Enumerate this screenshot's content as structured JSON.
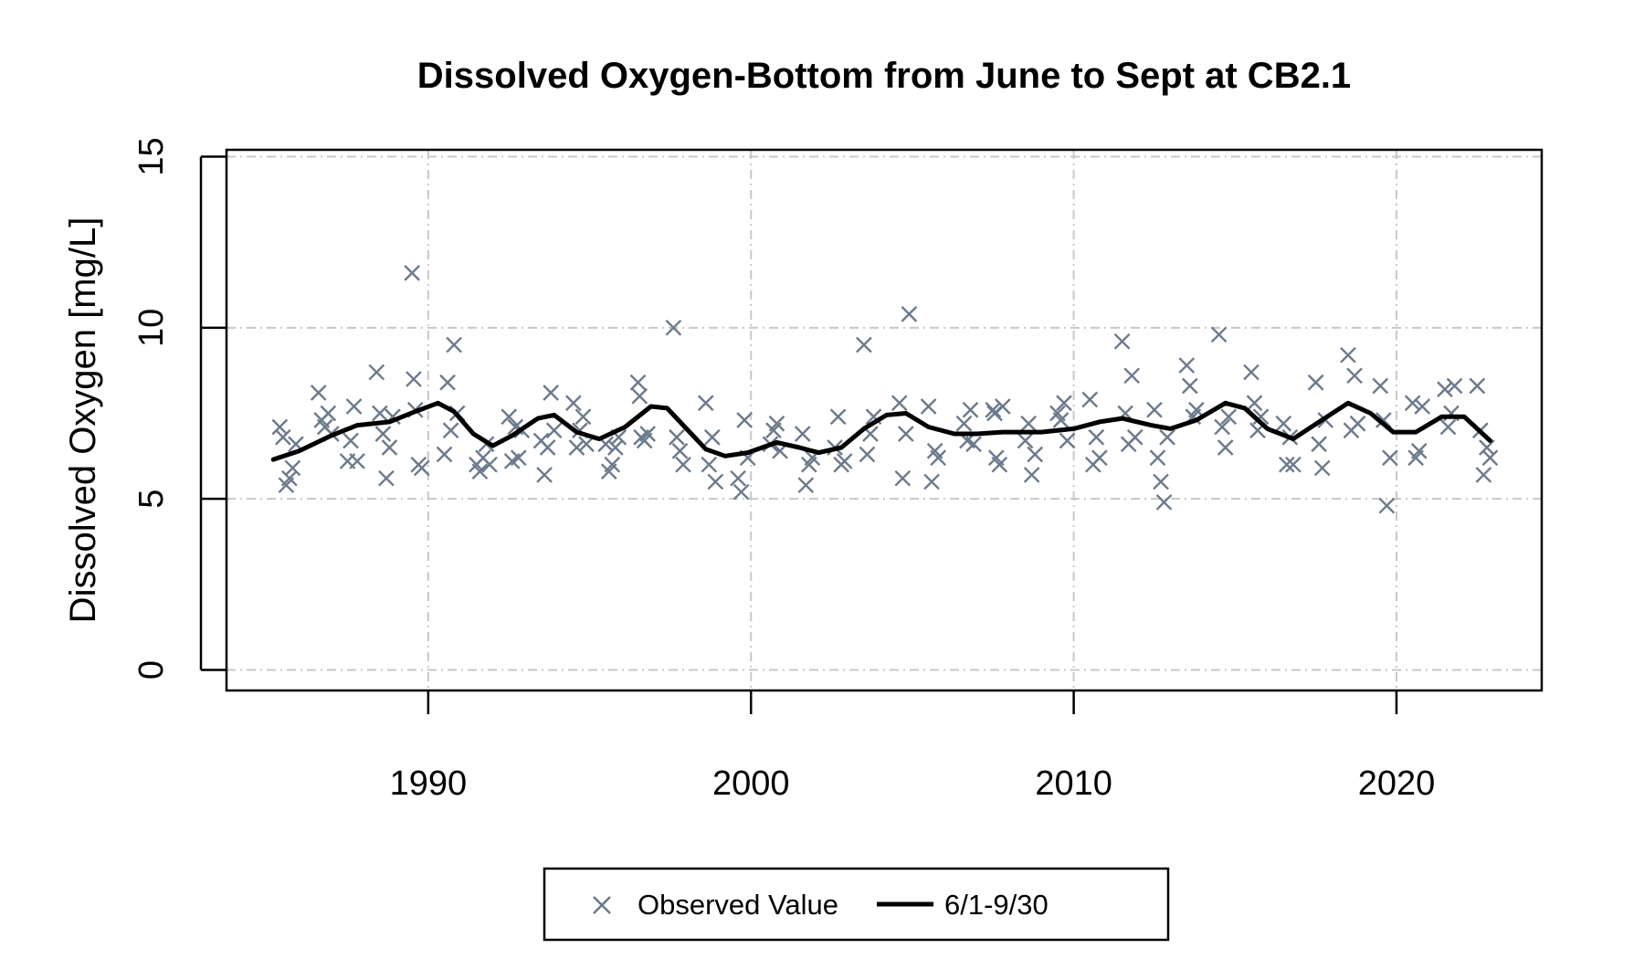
{
  "chart_data": {
    "type": "scatter",
    "title": "Dissolved Oxygen-Bottom from June to Sept at CB2.1",
    "xlabel": "",
    "ylabel": "Dissolved Oxygen [mg/L]",
    "xlim": [
      1983.75,
      2024.5
    ],
    "ylim": [
      -0.6,
      15.2
    ],
    "xticks": [
      1990,
      2000,
      2010,
      2020
    ],
    "xtick_labels": [
      "1990",
      "2000",
      "2010",
      "2020"
    ],
    "yticks": [
      0,
      5,
      10,
      15
    ],
    "ytick_labels": [
      "0",
      "5",
      "10",
      "15"
    ],
    "grid": true,
    "legend": {
      "position": "bottom"
    },
    "colors": {
      "observed": "#6b7a8c",
      "smooth": "#000000",
      "grid": "#c8c8c8"
    },
    "series": [
      {
        "name": "Observed Value",
        "kind": "scatter",
        "marker": "x",
        "points": [
          [
            1985.4,
            7.1
          ],
          [
            1985.5,
            6.8
          ],
          [
            1985.6,
            5.4
          ],
          [
            1985.7,
            5.6
          ],
          [
            1985.8,
            5.9
          ],
          [
            1985.9,
            6.6
          ],
          [
            1986.6,
            8.1
          ],
          [
            1986.7,
            7.3
          ],
          [
            1986.8,
            7.1
          ],
          [
            1986.9,
            7.5
          ],
          [
            1987.0,
            6.9
          ],
          [
            1987.5,
            6.1
          ],
          [
            1987.6,
            6.7
          ],
          [
            1987.7,
            7.7
          ],
          [
            1987.8,
            6.1
          ],
          [
            1988.4,
            8.7
          ],
          [
            1988.5,
            7.5
          ],
          [
            1988.6,
            6.9
          ],
          [
            1988.7,
            5.6
          ],
          [
            1988.8,
            6.5
          ],
          [
            1988.9,
            7.4
          ],
          [
            1989.5,
            11.6
          ],
          [
            1989.55,
            8.5
          ],
          [
            1989.6,
            7.6
          ],
          [
            1989.7,
            6.0
          ],
          [
            1989.8,
            5.9
          ],
          [
            1990.5,
            6.3
          ],
          [
            1990.6,
            8.4
          ],
          [
            1990.7,
            7.0
          ],
          [
            1990.8,
            9.5
          ],
          [
            1990.9,
            7.5
          ],
          [
            1991.5,
            6.0
          ],
          [
            1991.6,
            5.8
          ],
          [
            1991.7,
            6.2
          ],
          [
            1991.8,
            6.6
          ],
          [
            1991.9,
            6.0
          ],
          [
            1992.5,
            7.4
          ],
          [
            1992.6,
            6.1
          ],
          [
            1992.7,
            7.1
          ],
          [
            1992.8,
            6.2
          ],
          [
            1992.9,
            7.0
          ],
          [
            1993.5,
            6.7
          ],
          [
            1993.6,
            5.7
          ],
          [
            1993.7,
            6.5
          ],
          [
            1993.8,
            8.1
          ],
          [
            1993.9,
            7.0
          ],
          [
            1994.5,
            7.8
          ],
          [
            1994.6,
            6.5
          ],
          [
            1994.7,
            7.0
          ],
          [
            1994.8,
            7.4
          ],
          [
            1994.9,
            6.6
          ],
          [
            1995.5,
            6.6
          ],
          [
            1995.6,
            5.8
          ],
          [
            1995.7,
            6.0
          ],
          [
            1995.8,
            6.5
          ],
          [
            1995.9,
            6.8
          ],
          [
            1996.5,
            8.4
          ],
          [
            1996.55,
            8.0
          ],
          [
            1996.6,
            6.8
          ],
          [
            1996.7,
            6.7
          ],
          [
            1996.8,
            6.9
          ],
          [
            1997.6,
            10.0
          ],
          [
            1997.7,
            6.8
          ],
          [
            1997.8,
            6.4
          ],
          [
            1997.9,
            6.0
          ],
          [
            1998.6,
            7.8
          ],
          [
            1998.7,
            6.0
          ],
          [
            1998.8,
            6.8
          ],
          [
            1998.9,
            5.5
          ],
          [
            1999.6,
            5.6
          ],
          [
            1999.7,
            5.2
          ],
          [
            1999.8,
            7.3
          ],
          [
            1999.9,
            6.2
          ],
          [
            2000.6,
            6.6
          ],
          [
            2000.7,
            7.0
          ],
          [
            2000.8,
            7.2
          ],
          [
            2000.9,
            6.4
          ],
          [
            2001.6,
            6.9
          ],
          [
            2001.7,
            5.4
          ],
          [
            2001.8,
            6.0
          ],
          [
            2001.9,
            6.2
          ],
          [
            2002.6,
            6.5
          ],
          [
            2002.7,
            7.4
          ],
          [
            2002.8,
            6.0
          ],
          [
            2002.9,
            6.1
          ],
          [
            2003.5,
            9.5
          ],
          [
            2003.6,
            6.3
          ],
          [
            2003.7,
            6.9
          ],
          [
            2003.8,
            7.4
          ],
          [
            2004.6,
            7.8
          ],
          [
            2004.7,
            5.6
          ],
          [
            2004.8,
            6.9
          ],
          [
            2004.9,
            10.4
          ],
          [
            2005.5,
            7.7
          ],
          [
            2005.6,
            5.5
          ],
          [
            2005.7,
            6.4
          ],
          [
            2005.8,
            6.2
          ],
          [
            2006.6,
            7.2
          ],
          [
            2006.7,
            6.7
          ],
          [
            2006.8,
            7.6
          ],
          [
            2006.9,
            6.6
          ],
          [
            2007.5,
            7.6
          ],
          [
            2007.55,
            7.5
          ],
          [
            2007.6,
            6.2
          ],
          [
            2007.7,
            6.0
          ],
          [
            2007.8,
            7.7
          ],
          [
            2008.5,
            6.7
          ],
          [
            2008.6,
            7.2
          ],
          [
            2008.7,
            5.7
          ],
          [
            2008.8,
            6.3
          ],
          [
            2009.5,
            7.5
          ],
          [
            2009.6,
            7.3
          ],
          [
            2009.7,
            7.8
          ],
          [
            2009.8,
            6.7
          ],
          [
            2010.5,
            7.9
          ],
          [
            2010.6,
            6.0
          ],
          [
            2010.7,
            6.8
          ],
          [
            2010.8,
            6.2
          ],
          [
            2011.5,
            9.6
          ],
          [
            2011.6,
            7.5
          ],
          [
            2011.7,
            6.6
          ],
          [
            2011.8,
            8.6
          ],
          [
            2011.9,
            6.8
          ],
          [
            2012.5,
            7.6
          ],
          [
            2012.6,
            6.2
          ],
          [
            2012.7,
            5.5
          ],
          [
            2012.8,
            4.9
          ],
          [
            2012.9,
            6.8
          ],
          [
            2013.5,
            8.9
          ],
          [
            2013.6,
            8.3
          ],
          [
            2013.7,
            7.4
          ],
          [
            2013.8,
            7.6
          ],
          [
            2014.5,
            9.8
          ],
          [
            2014.6,
            7.1
          ],
          [
            2014.7,
            6.5
          ],
          [
            2014.8,
            7.4
          ],
          [
            2015.5,
            8.7
          ],
          [
            2015.6,
            7.8
          ],
          [
            2015.7,
            7.0
          ],
          [
            2015.8,
            7.4
          ],
          [
            2016.5,
            7.2
          ],
          [
            2016.6,
            6.0
          ],
          [
            2016.7,
            6.8
          ],
          [
            2016.8,
            6.0
          ],
          [
            2017.5,
            8.4
          ],
          [
            2017.6,
            6.6
          ],
          [
            2017.7,
            5.9
          ],
          [
            2017.8,
            7.3
          ],
          [
            2018.5,
            9.2
          ],
          [
            2018.6,
            7.0
          ],
          [
            2018.7,
            8.6
          ],
          [
            2018.8,
            7.2
          ],
          [
            2019.5,
            8.3
          ],
          [
            2019.6,
            7.3
          ],
          [
            2019.7,
            4.8
          ],
          [
            2019.8,
            6.2
          ],
          [
            2020.5,
            7.8
          ],
          [
            2020.6,
            6.2
          ],
          [
            2020.7,
            6.4
          ],
          [
            2020.8,
            7.7
          ],
          [
            2021.5,
            8.2
          ],
          [
            2021.6,
            7.1
          ],
          [
            2021.7,
            7.5
          ],
          [
            2021.8,
            8.3
          ],
          [
            2022.5,
            8.3
          ],
          [
            2022.6,
            7.0
          ],
          [
            2022.7,
            5.7
          ],
          [
            2022.8,
            6.5
          ],
          [
            2022.9,
            6.2
          ]
        ]
      },
      {
        "name": "6/1-9/30",
        "kind": "line",
        "points": [
          [
            1985.2,
            6.15
          ],
          [
            1986.0,
            6.4
          ],
          [
            1987.0,
            6.85
          ],
          [
            1987.8,
            7.15
          ],
          [
            1988.8,
            7.25
          ],
          [
            1989.6,
            7.55
          ],
          [
            1990.3,
            7.8
          ],
          [
            1990.8,
            7.55
          ],
          [
            1991.4,
            6.9
          ],
          [
            1992.0,
            6.55
          ],
          [
            1992.6,
            6.85
          ],
          [
            1993.4,
            7.35
          ],
          [
            1993.9,
            7.45
          ],
          [
            1994.6,
            6.95
          ],
          [
            1995.3,
            6.75
          ],
          [
            1996.1,
            7.1
          ],
          [
            1996.9,
            7.7
          ],
          [
            1997.4,
            7.65
          ],
          [
            1998.0,
            7.05
          ],
          [
            1998.6,
            6.45
          ],
          [
            1999.2,
            6.25
          ],
          [
            1999.9,
            6.35
          ],
          [
            2000.8,
            6.65
          ],
          [
            2001.5,
            6.5
          ],
          [
            2002.1,
            6.35
          ],
          [
            2002.8,
            6.5
          ],
          [
            2003.5,
            7.05
          ],
          [
            2004.2,
            7.45
          ],
          [
            2004.8,
            7.5
          ],
          [
            2005.5,
            7.1
          ],
          [
            2006.3,
            6.9
          ],
          [
            2007.0,
            6.9
          ],
          [
            2007.8,
            6.95
          ],
          [
            2009.0,
            6.95
          ],
          [
            2010.0,
            7.05
          ],
          [
            2010.8,
            7.25
          ],
          [
            2011.5,
            7.35
          ],
          [
            2012.4,
            7.15
          ],
          [
            2013.0,
            7.05
          ],
          [
            2013.8,
            7.3
          ],
          [
            2014.7,
            7.8
          ],
          [
            2015.3,
            7.65
          ],
          [
            2016.0,
            7.05
          ],
          [
            2016.8,
            6.75
          ],
          [
            2017.6,
            7.25
          ],
          [
            2018.5,
            7.8
          ],
          [
            2019.2,
            7.5
          ],
          [
            2019.9,
            6.95
          ],
          [
            2020.6,
            6.95
          ],
          [
            2021.4,
            7.4
          ],
          [
            2022.1,
            7.4
          ],
          [
            2022.9,
            6.7
          ]
        ]
      }
    ]
  },
  "legend": {
    "items": [
      {
        "label": "Observed Value"
      },
      {
        "label": "6/1-9/30"
      }
    ]
  }
}
